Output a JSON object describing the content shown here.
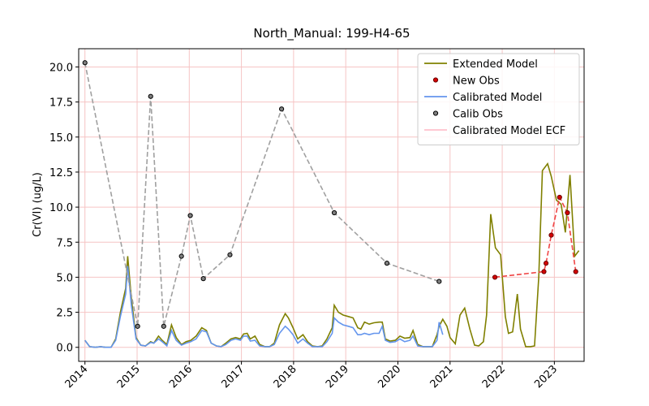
{
  "chart_data": {
    "type": "line",
    "title": "North_Manual: 199-H4-65",
    "ylabel": "Cr(VI) (ug/L)",
    "xlim": [
      2013.88,
      2023.57
    ],
    "ylim": [
      -1,
      21.3
    ],
    "xticks": [
      2014,
      2015,
      2016,
      2017,
      2018,
      2019,
      2020,
      2021,
      2022,
      2023
    ],
    "yticks": [
      {
        "value": 0,
        "label": "0.0"
      },
      2.5,
      {
        "value": 5,
        "label": "5.0"
      },
      7.5,
      {
        "value": 10,
        "label": "10.0"
      },
      12.5,
      {
        "value": 15,
        "label": "15.0"
      },
      17.5,
      {
        "value": 20,
        "label": "20.0"
      }
    ],
    "grid": true,
    "grid_color": "#f6c4c4",
    "legend": "upper right",
    "series": [
      {
        "name": "Extended Model",
        "kind": "line",
        "color": "#808000",
        "x": [
          2014.0,
          2014.09,
          2014.2,
          2014.3,
          2014.39,
          2014.5,
          2014.59,
          2014.68,
          2014.78,
          2014.82,
          2014.89,
          2014.98,
          2015.07,
          2015.16,
          2015.26,
          2015.32,
          2015.41,
          2015.48,
          2015.57,
          2015.66,
          2015.75,
          2015.85,
          2015.94,
          2016.03,
          2016.13,
          2016.24,
          2016.33,
          2016.42,
          2016.52,
          2016.61,
          2016.7,
          2016.8,
          2016.89,
          2016.98,
          2017.04,
          2017.11,
          2017.17,
          2017.26,
          2017.35,
          2017.45,
          2017.54,
          2017.63,
          2017.73,
          2017.84,
          2017.9,
          2017.99,
          2018.08,
          2018.18,
          2018.27,
          2018.36,
          2018.46,
          2018.55,
          2018.64,
          2018.74,
          2018.78,
          2018.86,
          2018.95,
          2019.05,
          2019.14,
          2019.23,
          2019.29,
          2019.36,
          2019.45,
          2019.54,
          2019.64,
          2019.7,
          2019.76,
          2019.85,
          2019.95,
          2020.04,
          2020.13,
          2020.23,
          2020.29,
          2020.38,
          2020.48,
          2020.57,
          2020.66,
          2020.75,
          2020.79,
          2020.86,
          2020.94,
          2021.0,
          2021.1,
          2021.19,
          2021.28,
          2021.38,
          2021.47,
          2021.55,
          2021.64,
          2021.7,
          2021.78,
          2021.87,
          2021.97,
          2022.06,
          2022.12,
          2022.2,
          2022.29,
          2022.35,
          2022.45,
          2022.54,
          2022.62,
          2022.7,
          2022.77,
          2022.87,
          2022.94,
          2023.04,
          2023.13,
          2023.21,
          2023.3,
          2023.39,
          2023.47
        ],
        "values": [
          0.5,
          0.05,
          0,
          0.05,
          0,
          0,
          0.6,
          2.5,
          4.2,
          6.5,
          3.5,
          0.7,
          0.15,
          0.1,
          0.4,
          0.3,
          0.8,
          0.5,
          0.2,
          1.6,
          0.7,
          0.2,
          0.4,
          0.5,
          0.8,
          1.4,
          1.2,
          0.3,
          0.1,
          0.05,
          0.3,
          0.6,
          0.7,
          0.6,
          0.95,
          1.0,
          0.6,
          0.8,
          0.2,
          0.05,
          0.05,
          0.3,
          1.6,
          2.4,
          2.1,
          1.4,
          0.6,
          0.9,
          0.4,
          0.1,
          0.05,
          0.1,
          0.6,
          1.4,
          3.0,
          2.5,
          2.3,
          2.2,
          2.1,
          1.4,
          1.3,
          1.8,
          1.65,
          1.75,
          1.8,
          1.8,
          0.6,
          0.45,
          0.5,
          0.8,
          0.65,
          0.7,
          1.2,
          0.2,
          0.05,
          0.05,
          0.05,
          0.9,
          1.5,
          2.0,
          1.5,
          0.7,
          0.25,
          2.3,
          2.8,
          1.3,
          0.15,
          0.1,
          0.4,
          2.3,
          9.5,
          7.1,
          6.6,
          2.2,
          1.0,
          1.1,
          3.8,
          1.3,
          0.05,
          0.05,
          0.1,
          5.0,
          12.6,
          13.1,
          12.2,
          10.5,
          10.2,
          8.2,
          12.3,
          6.5,
          6.9
        ]
      },
      {
        "name": "New Obs",
        "kind": "scatter",
        "color": "#d40000",
        "edge_color": "#6b0000",
        "link_color": "#f04545",
        "x": [
          2021.86,
          2022.8,
          2022.84,
          2022.94,
          2023.1,
          2023.25,
          2023.41
        ],
        "values": [
          5.0,
          5.4,
          6.0,
          8.0,
          10.7,
          9.6,
          5.4
        ]
      },
      {
        "name": "Calibrated Model",
        "kind": "line",
        "color": "#6495ed",
        "x": [
          2014.0,
          2014.09,
          2014.2,
          2014.3,
          2014.39,
          2014.5,
          2014.59,
          2014.68,
          2014.78,
          2014.82,
          2014.89,
          2014.98,
          2015.07,
          2015.16,
          2015.26,
          2015.32,
          2015.41,
          2015.48,
          2015.57,
          2015.66,
          2015.75,
          2015.85,
          2015.94,
          2016.03,
          2016.13,
          2016.24,
          2016.33,
          2016.42,
          2016.52,
          2016.61,
          2016.7,
          2016.8,
          2016.89,
          2016.98,
          2017.04,
          2017.11,
          2017.17,
          2017.26,
          2017.35,
          2017.45,
          2017.54,
          2017.63,
          2017.73,
          2017.84,
          2017.9,
          2017.99,
          2018.08,
          2018.18,
          2018.27,
          2018.36,
          2018.46,
          2018.55,
          2018.64,
          2018.74,
          2018.78,
          2018.86,
          2018.95,
          2019.05,
          2019.14,
          2019.23,
          2019.29,
          2019.36,
          2019.45,
          2019.54,
          2019.64,
          2019.7,
          2019.76,
          2019.85,
          2019.95,
          2020.04,
          2020.13,
          2020.23,
          2020.29,
          2020.38,
          2020.48,
          2020.57,
          2020.66,
          2020.75,
          2020.79,
          2020.86
        ],
        "values": [
          0.5,
          0.05,
          0,
          0.05,
          0,
          0,
          0.5,
          2.2,
          3.8,
          5.8,
          3.0,
          0.6,
          0.15,
          0.1,
          0.35,
          0.3,
          0.6,
          0.4,
          0.1,
          1.2,
          0.5,
          0.15,
          0.3,
          0.4,
          0.6,
          1.2,
          1.1,
          0.3,
          0.1,
          0.05,
          0.2,
          0.5,
          0.6,
          0.5,
          0.8,
          0.8,
          0.45,
          0.5,
          0.1,
          0.05,
          0.05,
          0.2,
          1.0,
          1.5,
          1.3,
          0.9,
          0.3,
          0.6,
          0.3,
          0.05,
          0.05,
          0.05,
          0.4,
          1.0,
          2.1,
          1.8,
          1.6,
          1.5,
          1.4,
          0.9,
          0.9,
          1.0,
          0.9,
          1.0,
          1.0,
          1.5,
          0.5,
          0.35,
          0.4,
          0.6,
          0.4,
          0.5,
          0.8,
          0.1,
          0.05,
          0.05,
          0.05,
          0.5,
          1.8,
          0.9
        ]
      },
      {
        "name": "Calib Obs",
        "kind": "scatter",
        "color": "#808080",
        "edge_color": "#000000",
        "link_color": "#a0a0a0",
        "x": [
          2014.0,
          2015.01,
          2015.26,
          2015.51,
          2015.85,
          2016.02,
          2016.27,
          2016.78,
          2017.77,
          2018.78,
          2019.79,
          2020.79
        ],
        "values": [
          20.3,
          1.5,
          17.9,
          1.5,
          6.5,
          9.4,
          4.9,
          6.6,
          17.0,
          9.6,
          6.0,
          4.7
        ]
      },
      {
        "name": "Calibrated Model ECF",
        "kind": "line",
        "color": "#ffc0cb",
        "x": [],
        "values": []
      }
    ]
  }
}
